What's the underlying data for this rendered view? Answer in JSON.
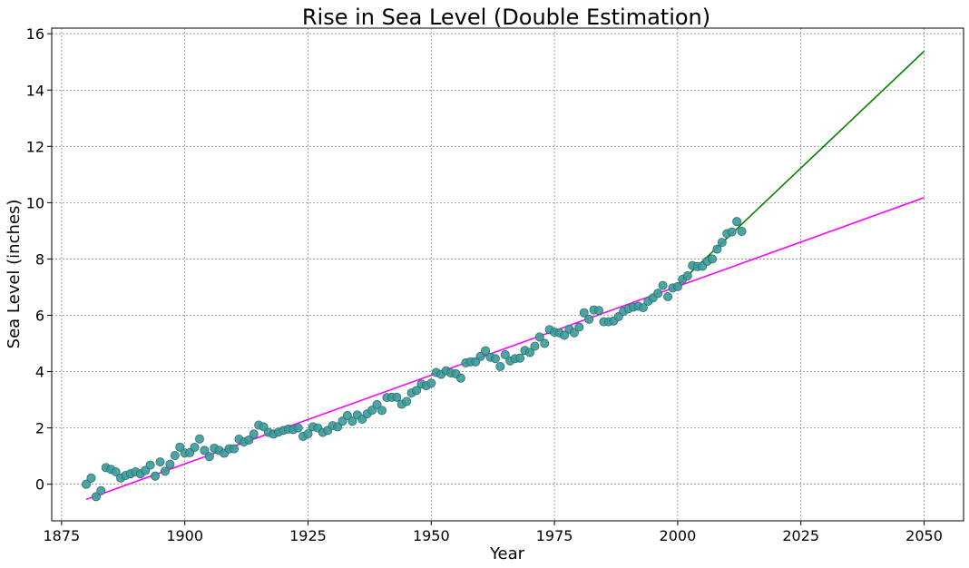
{
  "chart_data": {
    "type": "scatter",
    "title": "Rise in Sea Level (Double Estimation)",
    "xlabel": "Year",
    "ylabel": "Sea Level (inches)",
    "xlim": [
      1873,
      2058
    ],
    "ylim": [
      -1.3,
      16.2
    ],
    "xticks": [
      1875,
      1900,
      1925,
      1950,
      1975,
      2000,
      2025,
      2050
    ],
    "yticks": [
      0,
      2,
      4,
      6,
      8,
      10,
      12,
      14,
      16
    ],
    "grid": true,
    "colors": {
      "points_fill": "#3a9a9a",
      "points_edge": "#2f6f6f",
      "fit_all": "#ff00ff",
      "fit_recent": "#008000",
      "grid": "#8c8c8c"
    },
    "points": {
      "x": [
        1880,
        1881,
        1882,
        1883,
        1884,
        1885,
        1886,
        1887,
        1888,
        1889,
        1890,
        1891,
        1892,
        1893,
        1894,
        1895,
        1896,
        1897,
        1898,
        1899,
        1900,
        1901,
        1902,
        1903,
        1904,
        1905,
        1906,
        1907,
        1908,
        1909,
        1910,
        1911,
        1912,
        1913,
        1914,
        1915,
        1916,
        1917,
        1918,
        1919,
        1920,
        1921,
        1922,
        1923,
        1924,
        1925,
        1926,
        1927,
        1928,
        1929,
        1930,
        1931,
        1932,
        1933,
        1934,
        1935,
        1936,
        1937,
        1938,
        1939,
        1940,
        1941,
        1942,
        1943,
        1944,
        1945,
        1946,
        1947,
        1948,
        1949,
        1950,
        1951,
        1952,
        1953,
        1954,
        1955,
        1956,
        1957,
        1958,
        1959,
        1960,
        1961,
        1962,
        1963,
        1964,
        1965,
        1966,
        1967,
        1968,
        1969,
        1970,
        1971,
        1972,
        1973,
        1974,
        1975,
        1976,
        1977,
        1978,
        1979,
        1980,
        1981,
        1982,
        1983,
        1984,
        1985,
        1986,
        1987,
        1988,
        1989,
        1990,
        1991,
        1992,
        1993,
        1994,
        1995,
        1996,
        1997,
        1998,
        1999,
        2000,
        2001,
        2002,
        2003,
        2004,
        2005,
        2006,
        2007,
        2008,
        2009,
        2010,
        2011,
        2012,
        2013
      ],
      "y": [
        0.0,
        0.22,
        -0.44,
        -0.23,
        0.59,
        0.53,
        0.44,
        0.22,
        0.31,
        0.37,
        0.44,
        0.37,
        0.49,
        0.68,
        0.29,
        0.79,
        0.46,
        0.71,
        1.02,
        1.32,
        1.11,
        1.12,
        1.31,
        1.61,
        1.2,
        0.98,
        1.28,
        1.2,
        1.1,
        1.26,
        1.26,
        1.6,
        1.5,
        1.57,
        1.78,
        2.1,
        2.04,
        1.84,
        1.78,
        1.85,
        1.91,
        1.96,
        1.94,
        2.0,
        1.7,
        1.79,
        2.04,
        2.0,
        1.84,
        1.91,
        2.08,
        2.04,
        2.24,
        2.44,
        2.24,
        2.46,
        2.31,
        2.5,
        2.63,
        2.83,
        2.62,
        3.08,
        3.09,
        3.09,
        2.84,
        2.94,
        3.24,
        3.33,
        3.56,
        3.5,
        3.59,
        3.97,
        3.9,
        4.03,
        3.95,
        3.92,
        3.77,
        4.31,
        4.35,
        4.35,
        4.54,
        4.74,
        4.51,
        4.46,
        4.18,
        4.6,
        4.38,
        4.46,
        4.48,
        4.75,
        4.68,
        4.9,
        5.23,
        5.0,
        5.49,
        5.4,
        5.38,
        5.29,
        5.51,
        5.38,
        5.58,
        6.09,
        5.86,
        6.19,
        6.17,
        5.77,
        5.77,
        5.8,
        5.95,
        6.14,
        6.23,
        6.29,
        6.32,
        6.27,
        6.5,
        6.62,
        6.78,
        7.06,
        6.66,
        6.97,
        7.02,
        7.28,
        7.4,
        7.77,
        7.73,
        7.74,
        7.92,
        8.0,
        8.35,
        8.59,
        8.9,
        8.96,
        9.33,
        8.98
      ]
    },
    "fit_lines": [
      {
        "x": [
          1880,
          2050
        ],
        "y": [
          -0.54,
          10.18
        ]
      },
      {
        "x": [
          2000,
          2050
        ],
        "y": [
          7.08,
          15.38
        ]
      }
    ]
  }
}
